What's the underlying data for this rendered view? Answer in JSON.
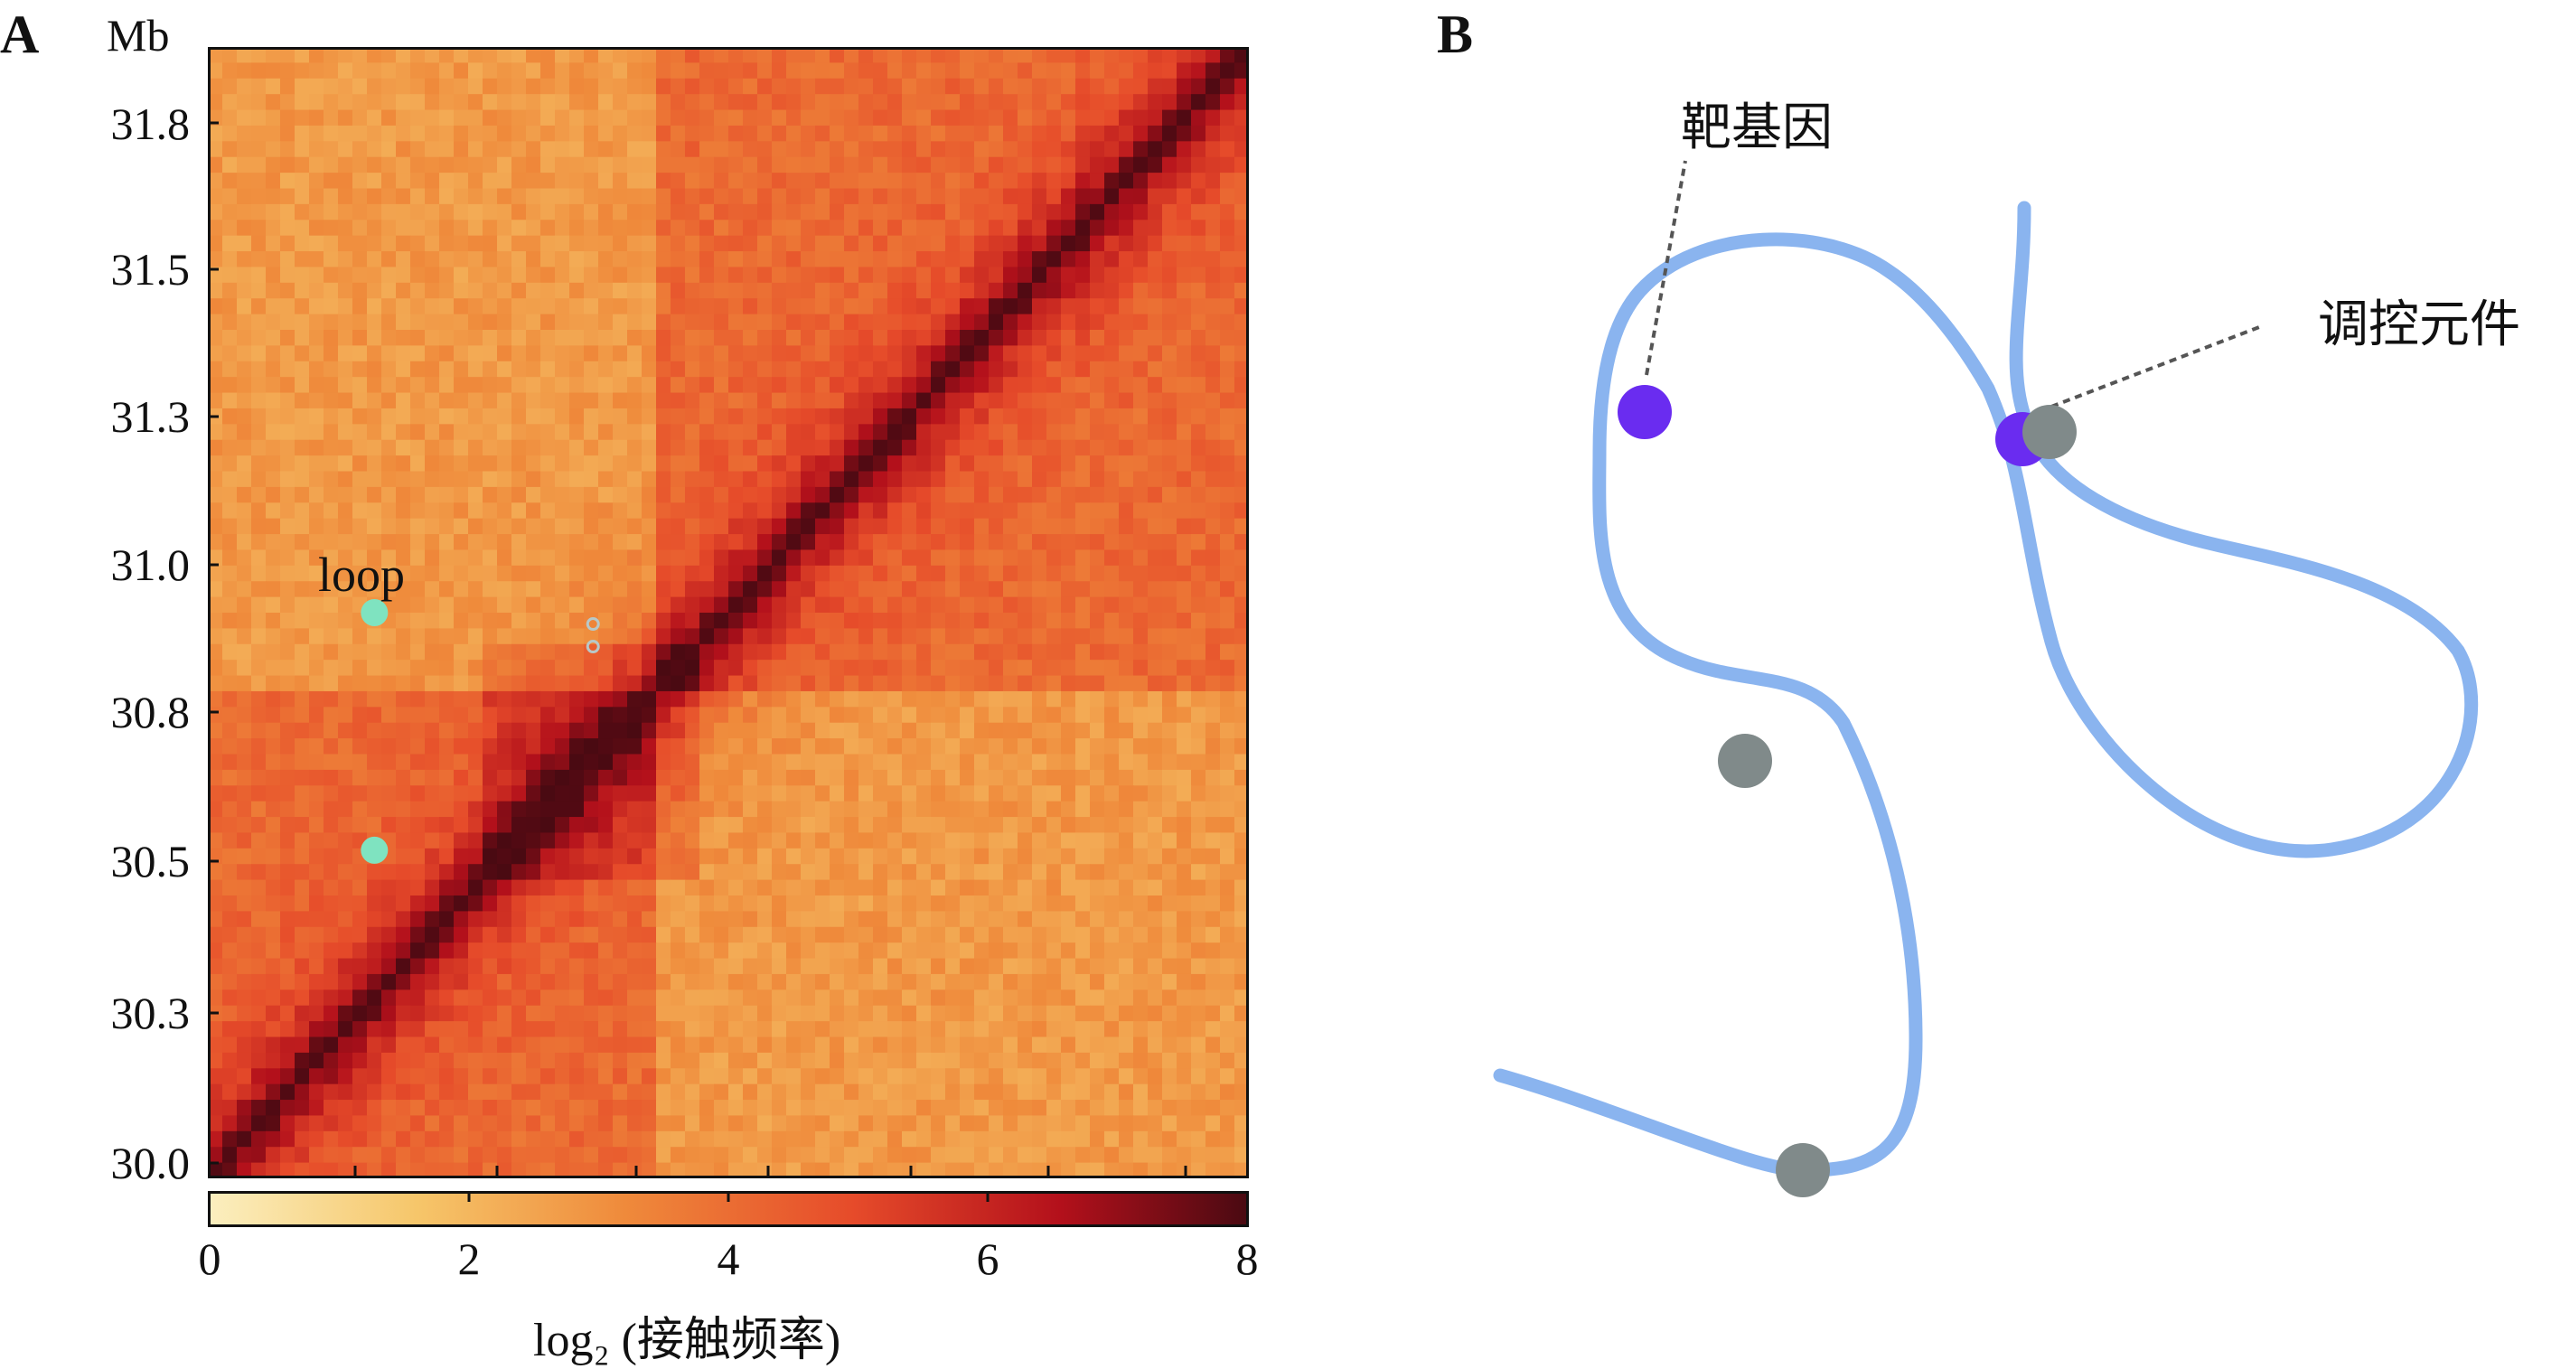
{
  "panel_a": {
    "label": "A",
    "unit": "Mb",
    "y_ticks": [
      "31.8",
      "31.5",
      "31.3",
      "31.0",
      "30.8",
      "30.5",
      "30.3",
      "30.0"
    ],
    "loop_label": "loop",
    "colorbar": {
      "ticks": [
        "0",
        "2",
        "4",
        "6",
        "8"
      ],
      "label": "log₂ (接触频率)",
      "range": [
        0,
        8
      ],
      "colors": [
        "#fbefbf",
        "#f6c66a",
        "#ef8a3b",
        "#e64b2a",
        "#b3101b",
        "#4a0a12"
      ]
    },
    "heatmap": {
      "bins": 72,
      "domains": [
        [
          0,
          0.43
        ],
        [
          0.43,
          1.0
        ]
      ],
      "subdomain": [
        0.27,
        0.47
      ],
      "loops": [
        [
          0.16,
          0.5
        ],
        [
          0.16,
          0.29
        ],
        [
          0.37,
          0.49
        ],
        [
          0.37,
          0.47
        ]
      ],
      "loop_color": "#7fe3c0"
    }
  },
  "panel_b": {
    "label": "B",
    "target_gene_label": "靶基因",
    "regulatory_element_label": "调控元件",
    "fiber_color": "#8ab4ef",
    "target_color": "#6a2cf0",
    "element_color": "#808a8a"
  }
}
